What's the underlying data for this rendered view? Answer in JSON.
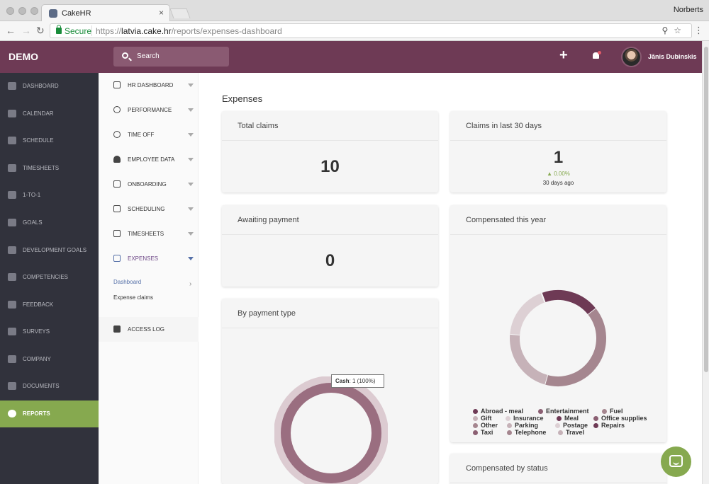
{
  "browser": {
    "tab_title": "CakeHR",
    "profile_name": "Norberts",
    "secure_label": "Secure",
    "url_scheme": "https://",
    "url_host": "latvia.cake.hr",
    "url_path": "/reports/expenses-dashboard"
  },
  "header": {
    "brand": "DEMO",
    "search_placeholder": "Search",
    "user_name": "Jānis Dubinskis"
  },
  "sidebar": {
    "items": [
      {
        "label": "DASHBOARD",
        "icon": "home-icon"
      },
      {
        "label": "CALENDAR",
        "icon": "calendar-icon"
      },
      {
        "label": "SCHEDULE",
        "icon": "hourglass-icon"
      },
      {
        "label": "TIMESHEETS",
        "icon": "table-icon"
      },
      {
        "label": "1-TO-1",
        "icon": "chat-icon"
      },
      {
        "label": "GOALS",
        "icon": "flag-icon"
      },
      {
        "label": "DEVELOPMENT GOALS",
        "icon": "trophy-icon"
      },
      {
        "label": "COMPETENCIES",
        "icon": "graduation-cap-icon"
      },
      {
        "label": "FEEDBACK",
        "icon": "feedback-icon"
      },
      {
        "label": "SURVEYS",
        "icon": "star-icon"
      },
      {
        "label": "COMPANY",
        "icon": "users-icon"
      },
      {
        "label": "DOCUMENTS",
        "icon": "folder-icon"
      },
      {
        "label": "REPORTS",
        "icon": "pie-chart-icon"
      }
    ]
  },
  "subnav": {
    "items": [
      {
        "label": "HR DASHBOARD",
        "icon": "monitor-icon"
      },
      {
        "label": "PERFORMANCE",
        "icon": "target-icon"
      },
      {
        "label": "TIME OFF",
        "icon": "clock-icon"
      },
      {
        "label": "EMPLOYEE DATA",
        "icon": "person-icon"
      },
      {
        "label": "ONBOARDING",
        "icon": "plus-box-icon"
      },
      {
        "label": "SCHEDULING",
        "icon": "hourglass-icon"
      },
      {
        "label": "TIMESHEETS",
        "icon": "table-icon"
      },
      {
        "label": "EXPENSES",
        "icon": "money-icon"
      }
    ],
    "expenses_links": [
      "Dashboard",
      "Expense claims"
    ],
    "access_log": "ACCESS LOG"
  },
  "main": {
    "page_title": "Expenses",
    "cards": {
      "total_claims": {
        "title": "Total claims",
        "value": "10"
      },
      "claims_30": {
        "title": "Claims in last 30 days",
        "value": "1",
        "change": "▲ 0.00%",
        "sub": "30 days ago"
      },
      "awaiting": {
        "title": "Awaiting payment",
        "value": "0"
      },
      "compensated_year": {
        "title": "Compensated this year"
      },
      "by_payment": {
        "title": "By payment type"
      },
      "by_status": {
        "title": "Compensated by status"
      }
    },
    "tooltip": {
      "label": "Cash",
      "value": ": 1 (100%)"
    }
  },
  "chart_data": [
    {
      "type": "pie",
      "title": "Compensated this year",
      "slices": [
        {
          "name": "Abroad - meal",
          "value": 20,
          "color": "#6e3a55"
        },
        {
          "name": "Fuel",
          "value": 40,
          "color": "#a5868f"
        },
        {
          "name": "Entertainment",
          "value": 22,
          "color": "#c6b2b8"
        },
        {
          "name": "Gift",
          "value": 18,
          "color": "#ddd0d4"
        }
      ],
      "legend": [
        {
          "name": "Abroad - meal",
          "color": "#6e3a55"
        },
        {
          "name": "Entertainment",
          "color": "#8b5f72"
        },
        {
          "name": "Fuel",
          "color": "#a5868f"
        },
        {
          "name": "Gift",
          "color": "#c6b2b8"
        },
        {
          "name": "Insurance",
          "color": "#ddd0d4"
        },
        {
          "name": "Meal",
          "color": "#6e3a55"
        },
        {
          "name": "Office supplies",
          "color": "#8b5f72"
        },
        {
          "name": "Other",
          "color": "#a5868f"
        },
        {
          "name": "Parking",
          "color": "#c6b2b8"
        },
        {
          "name": "Postage",
          "color": "#ddd0d4"
        },
        {
          "name": "Repairs",
          "color": "#6e3a55"
        },
        {
          "name": "Taxi",
          "color": "#8b5f72"
        },
        {
          "name": "Telephone",
          "color": "#a5868f"
        },
        {
          "name": "Travel",
          "color": "#c6b2b8"
        }
      ]
    },
    {
      "type": "pie",
      "title": "By payment type",
      "slices": [
        {
          "name": "Cash",
          "value": 1,
          "color": "#9a6e80"
        }
      ]
    }
  ]
}
